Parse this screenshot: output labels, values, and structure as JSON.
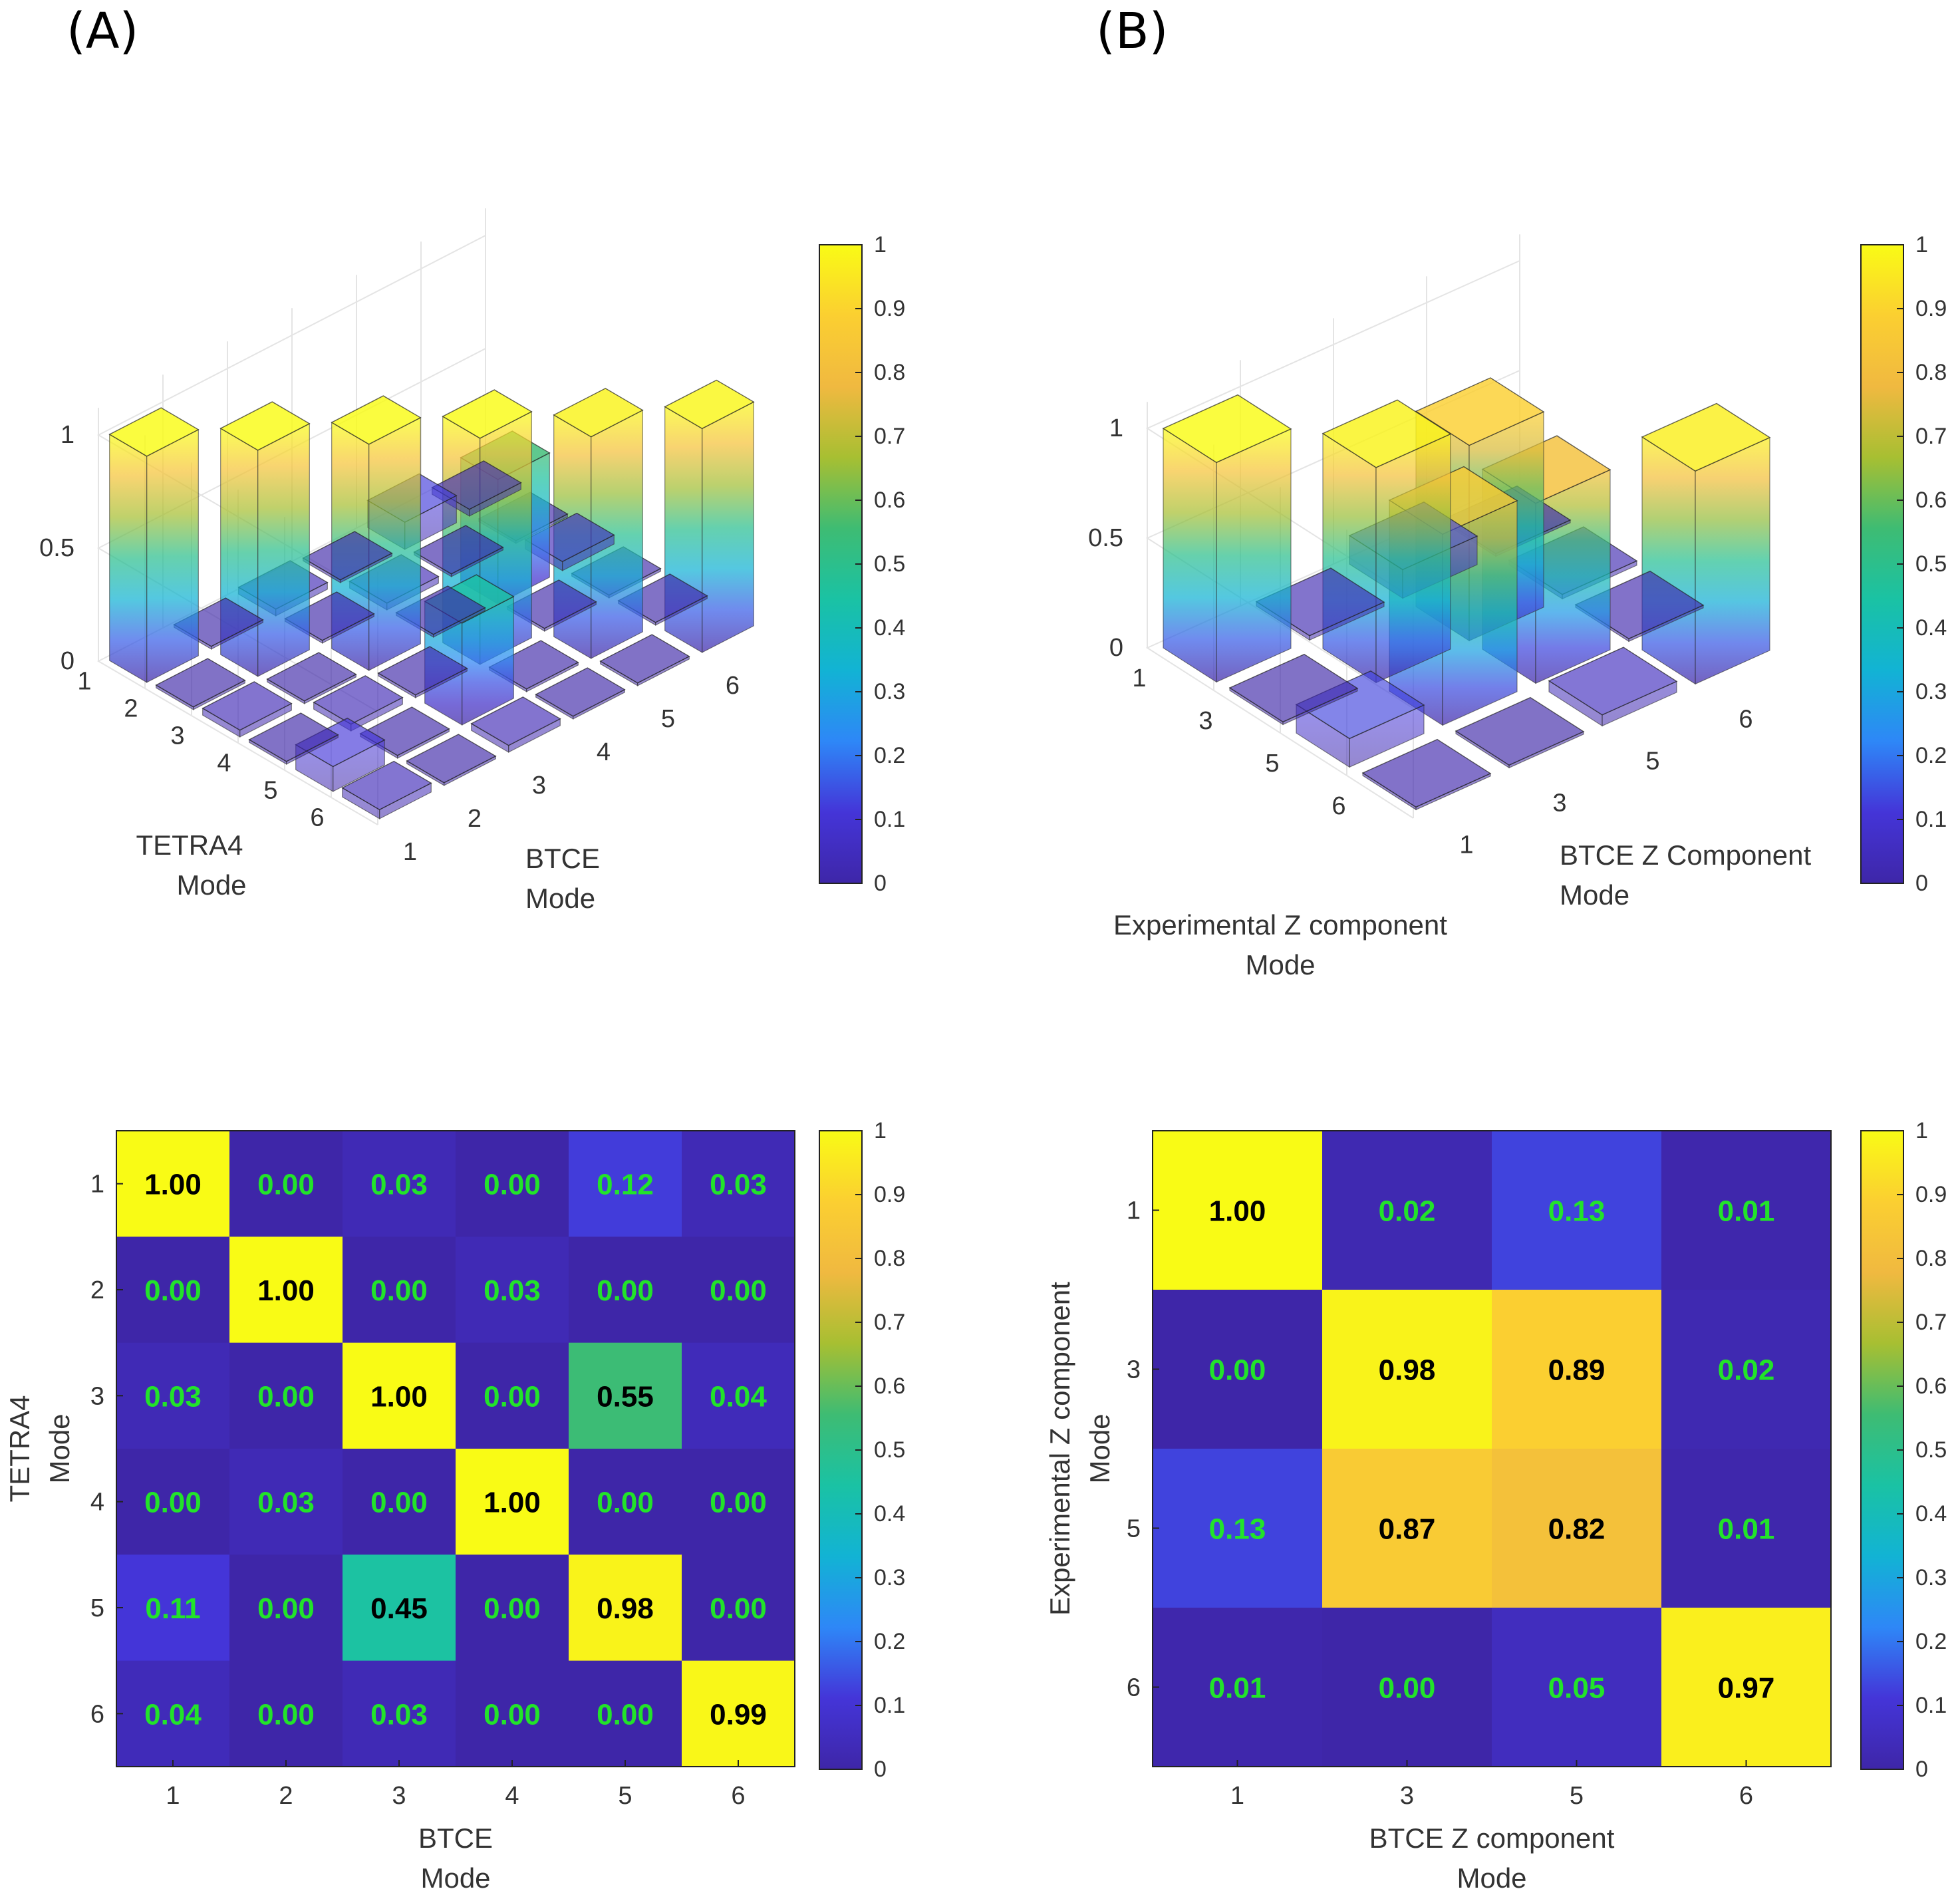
{
  "panel_labels": [
    "(A)",
    "(B)"
  ],
  "colorbar": {
    "stops": [
      "#3e26a8",
      "#4435d8",
      "#2e87f7",
      "#12b3d4",
      "#1ac2a4",
      "#3ebc73",
      "#a7bf32",
      "#f0b940",
      "#fbcf31",
      "#f9fb15"
    ],
    "ticks": [
      "0",
      "0.1",
      "0.2",
      "0.3",
      "0.4",
      "0.5",
      "0.6",
      "0.7",
      "0.8",
      "0.9",
      "1"
    ]
  },
  "chart_data": [
    {
      "id": "A3d",
      "type": "bar3d",
      "title": "",
      "xlabel": [
        "BTCE",
        "Mode"
      ],
      "ylabel": [
        "TETRA4",
        "Mode"
      ],
      "x_ticks": [
        "1",
        "2",
        "3",
        "4",
        "5",
        "6"
      ],
      "y_ticks": [
        "1",
        "2",
        "3",
        "4",
        "5",
        "6"
      ],
      "z_ticks": [
        "0",
        "0.5",
        "1"
      ],
      "zlim": [
        0,
        1
      ],
      "values": [
        [
          1.0,
          0.0,
          0.03,
          0.0,
          0.12,
          0.03
        ],
        [
          0.0,
          1.0,
          0.0,
          0.03,
          0.0,
          0.0
        ],
        [
          0.03,
          0.0,
          1.0,
          0.0,
          0.55,
          0.04
        ],
        [
          0.0,
          0.03,
          0.0,
          1.0,
          0.0,
          0.0
        ],
        [
          0.11,
          0.0,
          0.45,
          0.0,
          0.98,
          0.0
        ],
        [
          0.04,
          0.0,
          0.03,
          0.0,
          0.0,
          0.99
        ]
      ]
    },
    {
      "id": "B3d",
      "type": "bar3d",
      "title": "",
      "xlabel": [
        "BTCE Z Component",
        "Mode"
      ],
      "ylabel": [
        "Experimental Z component",
        "Mode"
      ],
      "x_ticks": [
        "1",
        "3",
        "5",
        "6"
      ],
      "y_ticks": [
        "1",
        "3",
        "5",
        "6"
      ],
      "z_ticks": [
        "0",
        "0.5",
        "1"
      ],
      "zlim": [
        0,
        1
      ],
      "values": [
        [
          1.0,
          0.02,
          0.13,
          0.01
        ],
        [
          0.0,
          0.98,
          0.89,
          0.02
        ],
        [
          0.13,
          0.87,
          0.82,
          0.01
        ],
        [
          0.01,
          0.0,
          0.05,
          0.97
        ]
      ]
    },
    {
      "id": "Aheat",
      "type": "heatmap",
      "title": "",
      "xlabel": [
        "BTCE",
        "Mode"
      ],
      "ylabel": [
        "TETRA4",
        "Mode"
      ],
      "x_ticks": [
        "1",
        "2",
        "3",
        "4",
        "5",
        "6"
      ],
      "y_ticks": [
        "1",
        "2",
        "3",
        "4",
        "5",
        "6"
      ],
      "clim": [
        0,
        1
      ],
      "values": [
        [
          1.0,
          0.0,
          0.03,
          0.0,
          0.12,
          0.03
        ],
        [
          0.0,
          1.0,
          0.0,
          0.03,
          0.0,
          0.0
        ],
        [
          0.03,
          0.0,
          1.0,
          0.0,
          0.55,
          0.04
        ],
        [
          0.0,
          0.03,
          0.0,
          1.0,
          0.0,
          0.0
        ],
        [
          0.11,
          0.0,
          0.45,
          0.0,
          0.98,
          0.0
        ],
        [
          0.04,
          0.0,
          0.03,
          0.0,
          0.0,
          0.99
        ]
      ],
      "labels": [
        [
          "1.00",
          "0.00",
          "0.03",
          "0.00",
          "0.12",
          "0.03"
        ],
        [
          "0.00",
          "1.00",
          "0.00",
          "0.03",
          "0.00",
          "0.00"
        ],
        [
          "0.03",
          "0.00",
          "1.00",
          "0.00",
          "0.55",
          "0.04"
        ],
        [
          "0.00",
          "0.03",
          "0.00",
          "1.00",
          "0.00",
          "0.00"
        ],
        [
          "0.11",
          "0.00",
          "0.45",
          "0.00",
          "0.98",
          "0.00"
        ],
        [
          "0.04",
          "0.00",
          "0.03",
          "0.00",
          "0.00",
          "0.99"
        ]
      ]
    },
    {
      "id": "Bheat",
      "type": "heatmap",
      "title": "",
      "xlabel": [
        "BTCE Z component",
        "Mode"
      ],
      "ylabel": [
        "Experimental Z component",
        "Mode"
      ],
      "x_ticks": [
        "1",
        "3",
        "5",
        "6"
      ],
      "y_ticks": [
        "1",
        "3",
        "5",
        "6"
      ],
      "clim": [
        0,
        1
      ],
      "values": [
        [
          1.0,
          0.02,
          0.13,
          0.01
        ],
        [
          0.0,
          0.98,
          0.89,
          0.02
        ],
        [
          0.13,
          0.87,
          0.82,
          0.01
        ],
        [
          0.01,
          0.0,
          0.05,
          0.97
        ]
      ],
      "labels": [
        [
          "1.00",
          "0.02",
          "0.13",
          "0.01"
        ],
        [
          "0.00",
          "0.98",
          "0.89",
          "0.02"
        ],
        [
          "0.13",
          "0.87",
          "0.82",
          "0.01"
        ],
        [
          "0.01",
          "0.00",
          "0.05",
          "0.97"
        ]
      ]
    }
  ]
}
